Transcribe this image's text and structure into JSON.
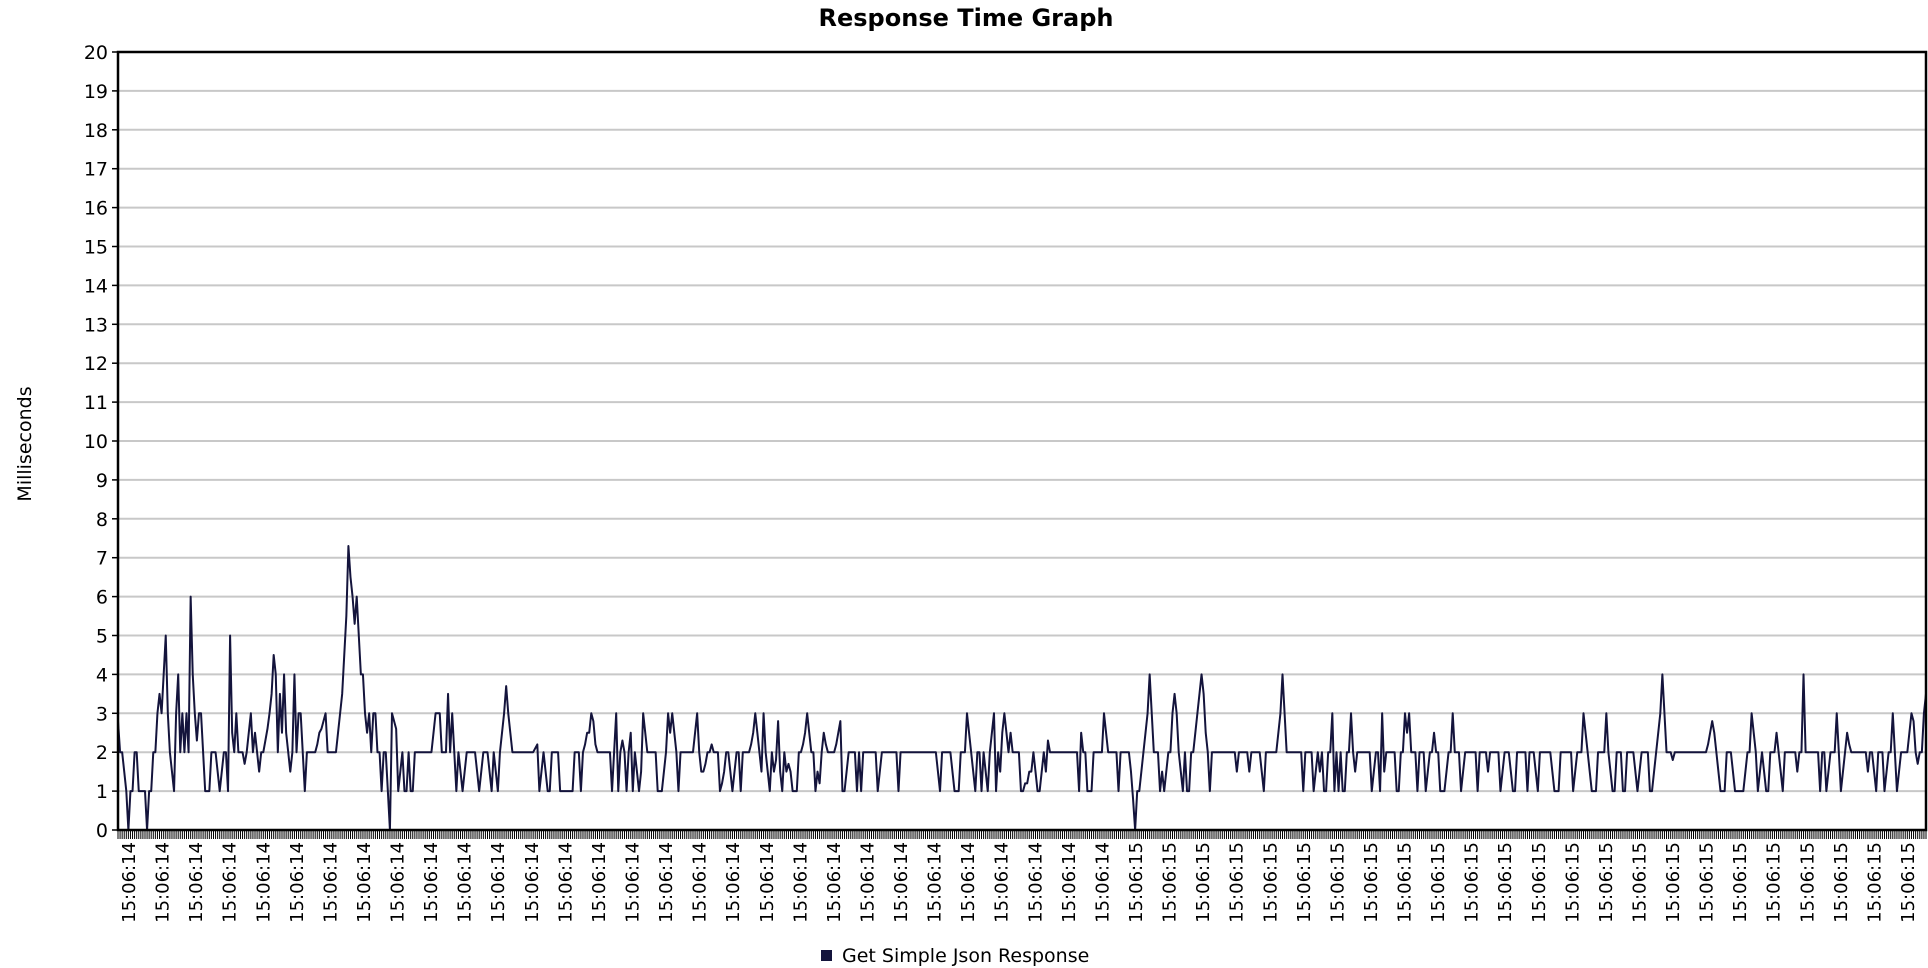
{
  "chart_data": {
    "type": "line",
    "title": "Response Time Graph",
    "ylabel": "Milliseconds",
    "xlabel": "",
    "ylim": [
      0,
      20
    ],
    "yticks": [
      0,
      1,
      2,
      3,
      4,
      5,
      6,
      7,
      8,
      9,
      10,
      11,
      12,
      13,
      14,
      15,
      16,
      17,
      18,
      19,
      20
    ],
    "grid": true,
    "legend_position": "bottom-center",
    "x_tick_labels": [
      "15:06:14",
      "15:06:14",
      "15:06:14",
      "15:06:14",
      "15:06:14",
      "15:06:14",
      "15:06:14",
      "15:06:14",
      "15:06:14",
      "15:06:14",
      "15:06:14",
      "15:06:14",
      "15:06:14",
      "15:06:14",
      "15:06:14",
      "15:06:14",
      "15:06:14",
      "15:06:14",
      "15:06:14",
      "15:06:14",
      "15:06:14",
      "15:06:14",
      "15:06:14",
      "15:06:14",
      "15:06:14",
      "15:06:14",
      "15:06:14",
      "15:06:14",
      "15:06:14",
      "15:06:14",
      "15:06:15",
      "15:06:15",
      "15:06:15",
      "15:06:15",
      "15:06:15",
      "15:06:15",
      "15:06:15",
      "15:06:15",
      "15:06:15",
      "15:06:15",
      "15:06:15",
      "15:06:15",
      "15:06:15",
      "15:06:15",
      "15:06:15",
      "15:06:15",
      "15:06:15",
      "15:06:15",
      "15:06:15",
      "15:06:15",
      "15:06:15",
      "15:06:15",
      "15:06:15",
      "15:06:15"
    ],
    "series": [
      {
        "name": "Get Simple Json Response",
        "color": "#14143c",
        "values": [
          2.8,
          2,
          2,
          1.5,
          1,
          0,
          1,
          1,
          2,
          2,
          1,
          1,
          1,
          1,
          0,
          1,
          1,
          2,
          2,
          3,
          3.5,
          3,
          4,
          5,
          3,
          2,
          1.5,
          1,
          3,
          4,
          2,
          3,
          2,
          3,
          2,
          6,
          4,
          3,
          2.3,
          3,
          3,
          2,
          1,
          1,
          1,
          2,
          2,
          2,
          1.5,
          1,
          1.5,
          2,
          2,
          1,
          5,
          2.5,
          2,
          3,
          2,
          2,
          2,
          1.7,
          2,
          2.5,
          3,
          2,
          2.5,
          2,
          1.5,
          2,
          2,
          2.3,
          2.6,
          3,
          3.5,
          4.5,
          4,
          2,
          3.5,
          2.5,
          4,
          2.5,
          2,
          1.5,
          2,
          4,
          2,
          3,
          3,
          2,
          1,
          2,
          2,
          2,
          2,
          2,
          2.2,
          2.5,
          2.6,
          2.8,
          3,
          2,
          2,
          2,
          2,
          2,
          2.5,
          3,
          3.5,
          4.5,
          5.5,
          7.3,
          6.5,
          6,
          5.3,
          6,
          5,
          4,
          4,
          3,
          2.5,
          3,
          2,
          3,
          3,
          2,
          2,
          1,
          2,
          2,
          1,
          0,
          3,
          2.8,
          2.6,
          1,
          1.5,
          2,
          1,
          1,
          2,
          1,
          1,
          2,
          2,
          2,
          2,
          2,
          2,
          2,
          2,
          2,
          2.5,
          3,
          3,
          3,
          2,
          2,
          2,
          3.5,
          2,
          3,
          2,
          1,
          2,
          1.5,
          1,
          1.5,
          2,
          2,
          2,
          2,
          2,
          1.5,
          1,
          1.5,
          2,
          2,
          2,
          1.5,
          1,
          2,
          1.5,
          1,
          2,
          2.5,
          3,
          3.7,
          3,
          2.5,
          2,
          2,
          2,
          2,
          2,
          2,
          2,
          2,
          2,
          2,
          2,
          2.1,
          2.2,
          1,
          1.5,
          2,
          1.5,
          1,
          1,
          2,
          2,
          2,
          2,
          1,
          1,
          1,
          1,
          1,
          1,
          1,
          2,
          2,
          2,
          1,
          2,
          2.2,
          2.5,
          2.5,
          3,
          2.8,
          2.2,
          2,
          2,
          2,
          2,
          2,
          2,
          2,
          1,
          2,
          3,
          1,
          2,
          2.3,
          2,
          1,
          2,
          2.5,
          1,
          2,
          1.5,
          1,
          1.5,
          3,
          2.5,
          2,
          2,
          2,
          2,
          2,
          1,
          1,
          1,
          1.5,
          2,
          3,
          2.5,
          3,
          2.5,
          2,
          1,
          2,
          2,
          2,
          2,
          2,
          2,
          2,
          2.5,
          3,
          2,
          1.5,
          1.5,
          1.7,
          2,
          2,
          2.2,
          2,
          2,
          2,
          1,
          1.2,
          1.5,
          2,
          2,
          1.5,
          1,
          1.5,
          2,
          2,
          1,
          2,
          2,
          2,
          2,
          2.2,
          2.5,
          3,
          2.5,
          2,
          1.5,
          3,
          2,
          1.5,
          1,
          2,
          1.5,
          1.8,
          2.8,
          1.5,
          1,
          2,
          1.5,
          1.7,
          1.5,
          1,
          1,
          1,
          2,
          2,
          2.2,
          2.5,
          3,
          2.5,
          2,
          2,
          1,
          1.5,
          1.2,
          2,
          2.5,
          2.2,
          2,
          2,
          2,
          2,
          2.2,
          2.5,
          2.8,
          1,
          1,
          1.5,
          2,
          2,
          2,
          2,
          1,
          2,
          1,
          2,
          2,
          2,
          2,
          2,
          2,
          2,
          1,
          1.5,
          2,
          2,
          2,
          2,
          2,
          2,
          2,
          2,
          1,
          2,
          2,
          2,
          2,
          2,
          2,
          2,
          2,
          2,
          2,
          2,
          2,
          2,
          2,
          2,
          2,
          2,
          2,
          1.5,
          1,
          2,
          2,
          2,
          2,
          2,
          1.5,
          1,
          1,
          1,
          2,
          2,
          2,
          3,
          2.5,
          2,
          1.5,
          1,
          2,
          2,
          1,
          2,
          1.5,
          1,
          2,
          2.5,
          3,
          1,
          2,
          1.5,
          2.5,
          3,
          2.5,
          2,
          2.5,
          2,
          2,
          2,
          2,
          1,
          1,
          1.2,
          1.2,
          1.5,
          1.5,
          2,
          1.5,
          1,
          1,
          1.5,
          2,
          1.5,
          2.3,
          2,
          2,
          2,
          2,
          2,
          2,
          2,
          2,
          2,
          2,
          2,
          2,
          2,
          2,
          1,
          2.5,
          2,
          2,
          1,
          1,
          1,
          2,
          2,
          2,
          2,
          2,
          3,
          2.5,
          2,
          2,
          2,
          2,
          2,
          1,
          2,
          2,
          2,
          2,
          2,
          1.5,
          0.8,
          0,
          1,
          1,
          1.5,
          2,
          2.5,
          3,
          4,
          3,
          2,
          2,
          2,
          1,
          1.5,
          1,
          1.5,
          2,
          2,
          3,
          3.5,
          3,
          2,
          1.5,
          1,
          2,
          1,
          1,
          2,
          2,
          2.5,
          3,
          3.5,
          4,
          3.5,
          2.5,
          2,
          1,
          2,
          2,
          2,
          2,
          2,
          2,
          2,
          2,
          2,
          2,
          2,
          2,
          1.5,
          2,
          2,
          2,
          2,
          2,
          1.5,
          2,
          2,
          2,
          2,
          2,
          1.5,
          1,
          2,
          2,
          2,
          2,
          2,
          2,
          2.5,
          3,
          4,
          3,
          2,
          2,
          2,
          2,
          2,
          2,
          2,
          2,
          1,
          2,
          2,
          2,
          2,
          1,
          1.5,
          2,
          1.5,
          2,
          1,
          1,
          2,
          2,
          3,
          1,
          2,
          1,
          2,
          1,
          1,
          2,
          2,
          3,
          2,
          1.5,
          2,
          2,
          2,
          2,
          2,
          2,
          2,
          1,
          1.5,
          2,
          2,
          1,
          3,
          1.5,
          2,
          2,
          2,
          2,
          2,
          1,
          1,
          2,
          2,
          3,
          2.5,
          3,
          2,
          2,
          2,
          1,
          2,
          2,
          2,
          1,
          1.5,
          2,
          2,
          2.5,
          2,
          2,
          1,
          1,
          1,
          1.5,
          2,
          2,
          3,
          2,
          2,
          2,
          1,
          1.5,
          2,
          2,
          2,
          2,
          2,
          2,
          1,
          2,
          2,
          2,
          2,
          1.5,
          2,
          2,
          2,
          2,
          2,
          1,
          1.5,
          2,
          2,
          2,
          1.5,
          1,
          1,
          2,
          2,
          2,
          2,
          2,
          1,
          2,
          2,
          2,
          1.5,
          1,
          2,
          2,
          2,
          2,
          2,
          2,
          1.5,
          1,
          1,
          1,
          2,
          2,
          2,
          2,
          2,
          2,
          1,
          1.5,
          2,
          2,
          2,
          3,
          2.5,
          2,
          1.5,
          1,
          1,
          1,
          2,
          2,
          2,
          2,
          3,
          2,
          1.5,
          1,
          1,
          2,
          2,
          2,
          1,
          1,
          2,
          2,
          2,
          2,
          1.5,
          1,
          1.5,
          2,
          2,
          2,
          2,
          1,
          1,
          1.5,
          2,
          2.5,
          3,
          4,
          3,
          2,
          2,
          2,
          1.8,
          2,
          2,
          2,
          2,
          2,
          2,
          2,
          2,
          2,
          2,
          2,
          2,
          2,
          2,
          2,
          2,
          2.2,
          2.5,
          2.8,
          2.5,
          2,
          1.5,
          1,
          1,
          1,
          2,
          2,
          2,
          1.5,
          1,
          1,
          1,
          1,
          1,
          1.5,
          2,
          2,
          3,
          2.5,
          2,
          1,
          1.5,
          2,
          1.5,
          1,
          1,
          2,
          2,
          2,
          2.5,
          2,
          1.5,
          1,
          2,
          2,
          2,
          2,
          2,
          2,
          1.5,
          2,
          2,
          4,
          2,
          2,
          2,
          2,
          2,
          2,
          2,
          1,
          2,
          2,
          1,
          1.5,
          2,
          2,
          2,
          3,
          2,
          1,
          1.5,
          2,
          2.5,
          2.2,
          2,
          2,
          2,
          2,
          2,
          2,
          2,
          2,
          1.5,
          2,
          2,
          1.5,
          1,
          2,
          2,
          2,
          1,
          1.5,
          2,
          2,
          3,
          2,
          1,
          1.5,
          2,
          2,
          2,
          2,
          2.5,
          3,
          2.8,
          2,
          1.7,
          2,
          2,
          3,
          3.5
        ]
      }
    ]
  }
}
